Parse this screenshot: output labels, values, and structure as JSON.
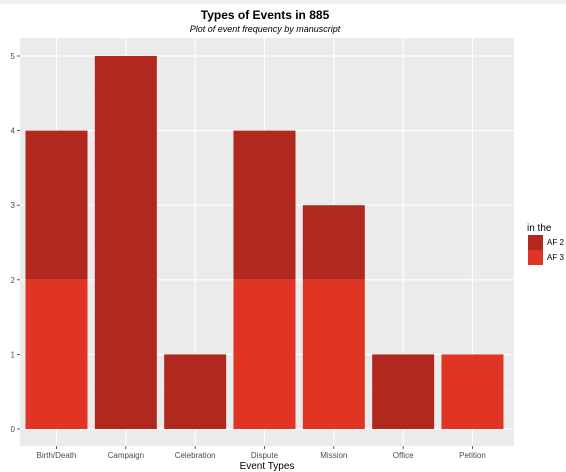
{
  "chart_data": {
    "type": "bar",
    "stacked": true,
    "title": "Types of Events in 885",
    "subtitle": "Plot of event frequency by manuscript",
    "xlabel": "Event Types",
    "ylabel": "",
    "ylim": [
      0,
      5.35
    ],
    "yticks": [
      0,
      1,
      2,
      3,
      4,
      5
    ],
    "grid": true,
    "legend_position": "right",
    "legend_title": "in the",
    "categories": [
      "Birth/Death",
      "Campaign",
      "Celebration",
      "Dispute",
      "Mission",
      "Office",
      "Petition"
    ],
    "series": [
      {
        "name": "AF 2",
        "color": "#b0281e",
        "values": [
          2,
          5,
          1,
          2,
          1,
          1,
          0
        ]
      },
      {
        "name": "AF 3",
        "color": "#e03524",
        "values": [
          2,
          0,
          0,
          2,
          2,
          0,
          1
        ]
      }
    ]
  },
  "colors": {
    "panel_background": "#ebebeb",
    "grid_major": "#ffffff",
    "grid_minor": "#f4f4f4",
    "tick_text": "#4d4d4d"
  }
}
